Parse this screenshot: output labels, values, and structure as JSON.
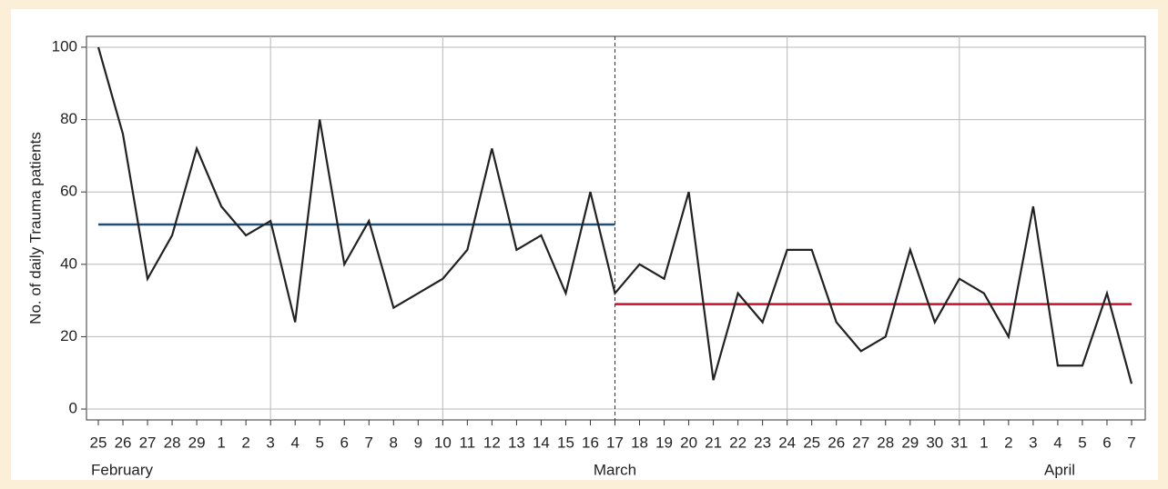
{
  "chart_data": {
    "type": "line",
    "ylabel": "No. of daily Trauma patients",
    "categories": [
      "25",
      "26",
      "27",
      "28",
      "29",
      "1",
      "2",
      "3",
      "4",
      "5",
      "6",
      "7",
      "8",
      "9",
      "10",
      "11",
      "12",
      "13",
      "14",
      "15",
      "16",
      "17",
      "18",
      "19",
      "20",
      "21",
      "22",
      "23",
      "24",
      "25",
      "26",
      "27",
      "28",
      "29",
      "30",
      "31",
      "1",
      "2",
      "3",
      "4",
      "5",
      "6",
      "7"
    ],
    "series": [
      {
        "color": "#222222",
        "values": [
          100,
          76,
          36,
          48,
          72,
          56,
          48,
          52,
          24,
          80,
          40,
          52,
          28,
          32,
          36,
          44,
          72,
          44,
          48,
          32,
          60,
          32,
          40,
          36,
          60,
          8,
          32,
          24,
          44,
          44,
          24,
          16,
          20,
          44,
          24,
          36,
          32,
          20,
          56,
          12,
          12,
          32,
          7
        ]
      }
    ],
    "months": [
      "February",
      "March",
      "April"
    ],
    "mean_lines": [
      {
        "value": 51,
        "start": 0,
        "end": 21,
        "color": "#1f4e79"
      },
      {
        "value": 29,
        "start": 21,
        "end": 42,
        "color": "#c8102e"
      }
    ],
    "divider": 21,
    "xgrid_at": [
      7,
      14,
      28,
      35
    ],
    "ylim": [
      -3,
      103
    ],
    "yticks": [
      0,
      20,
      40,
      60,
      80,
      100
    ],
    "grid": true
  }
}
